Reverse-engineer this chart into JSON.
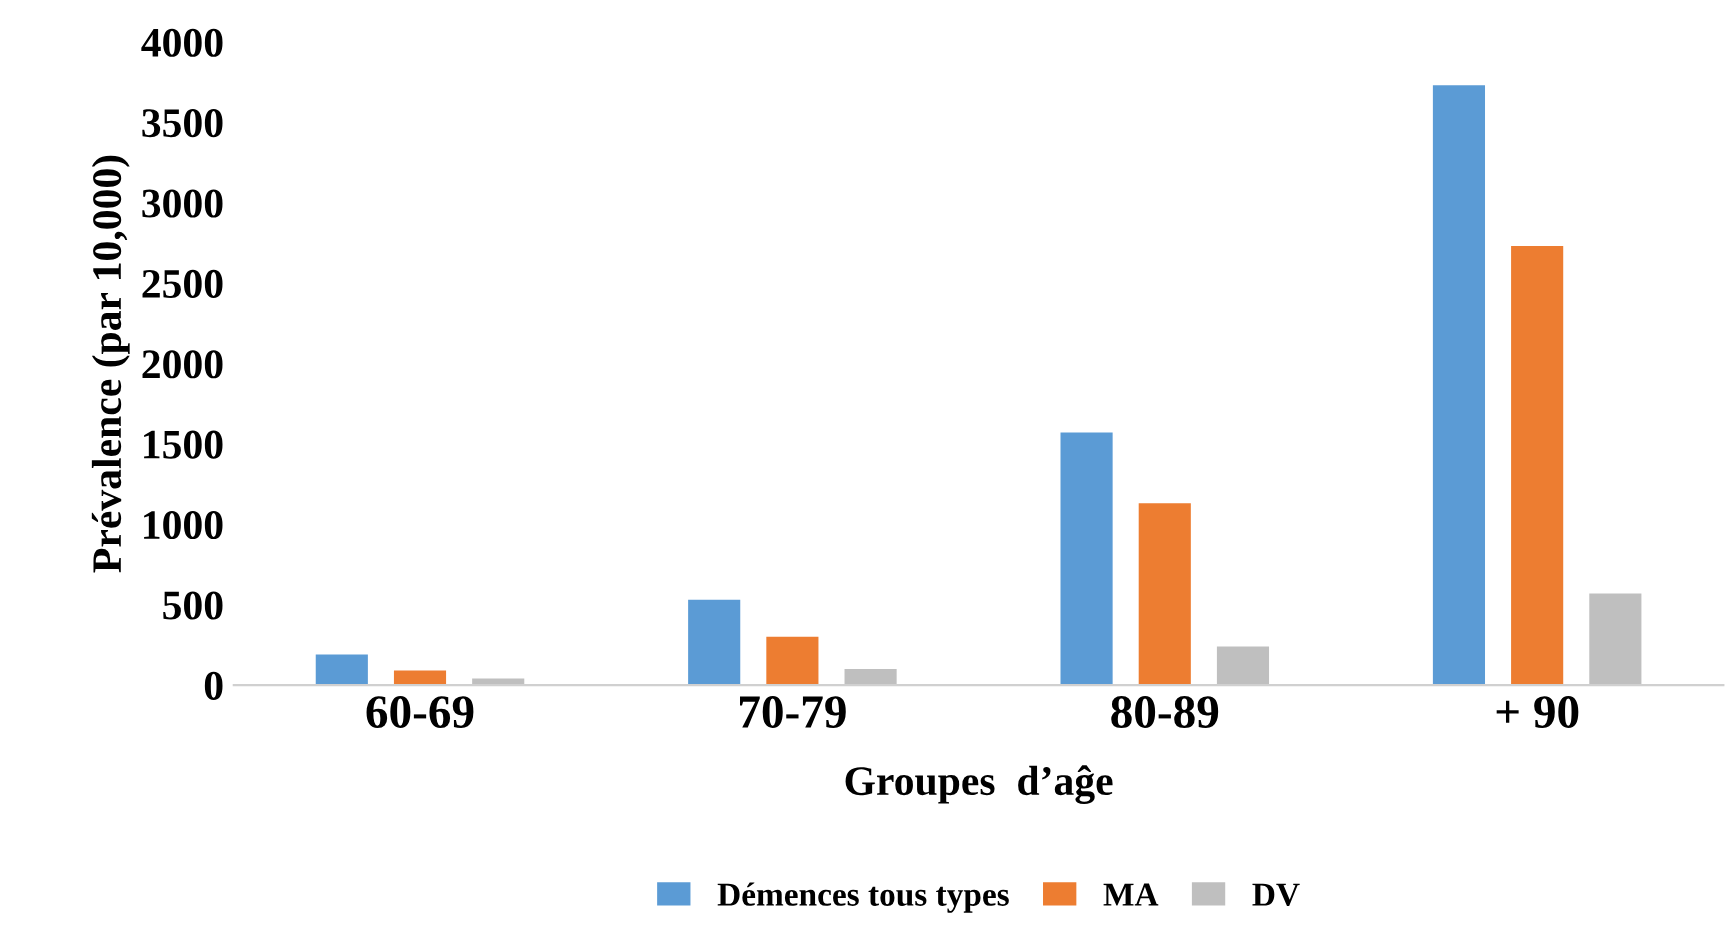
{
  "chart_data": {
    "type": "bar",
    "xlabel": "Groupes  d’aĝe",
    "ylabel": "Prévalence (par 10,000)",
    "categories": [
      "60-69",
      "70-79",
      "80-89",
      "+ 90"
    ],
    "series": [
      {
        "name": "Démences tous types",
        "color": "#5b9bd5",
        "values": [
          190,
          530,
          1570,
          3730
        ]
      },
      {
        "name": "MA",
        "color": "#ed7d31",
        "values": [
          90,
          300,
          1130,
          2730
        ]
      },
      {
        "name": "DV",
        "color": "#bfbfbf",
        "values": [
          40,
          100,
          240,
          570
        ]
      }
    ],
    "ylim": [
      0,
      4000
    ],
    "yticks": [
      0,
      500,
      1000,
      1500,
      2000,
      2500,
      3000,
      3500,
      4000
    ],
    "grid": false,
    "legend": "bottom"
  }
}
